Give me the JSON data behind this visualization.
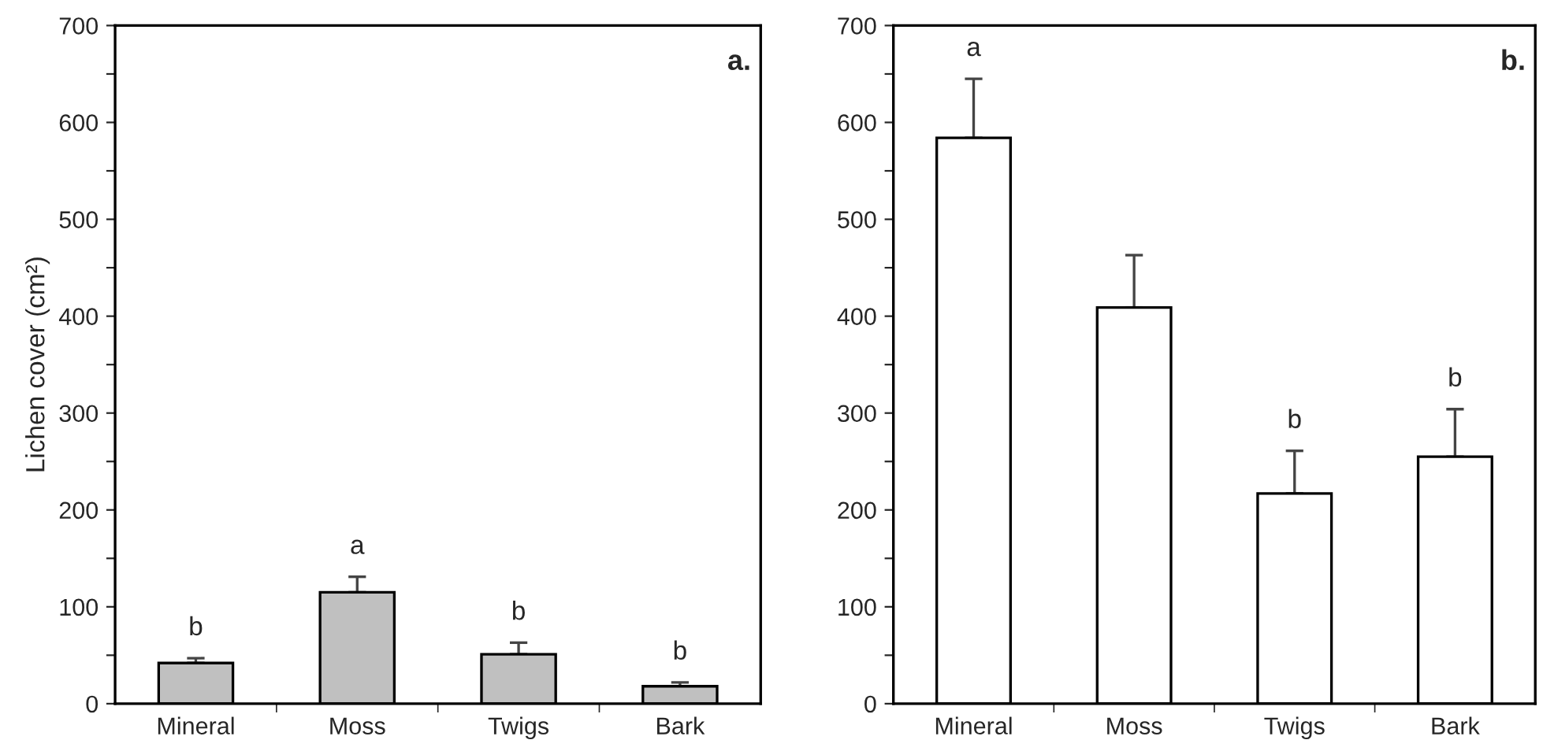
{
  "chart_data": [
    {
      "type": "bar",
      "ylabel": "Lichen cover (cm²)",
      "categories": [
        "Mineral",
        "Moss",
        "Twigs",
        "Bark"
      ],
      "series": [
        {
          "color": "#c0c0c0",
          "values": [
            42,
            115,
            51,
            18
          ],
          "errors": [
            [
              42,
              47
            ],
            [
              115,
              131
            ],
            [
              51,
              63
            ],
            [
              18,
              22
            ]
          ]
        }
      ],
      "ylim": [
        0,
        700
      ],
      "yticks": [
        0,
        {
          "value": 50,
          "label": null
        },
        100,
        {
          "value": 150,
          "label": null
        },
        200,
        {
          "value": 250,
          "label": null
        },
        300,
        {
          "value": 350,
          "label": null
        },
        400,
        {
          "value": 450,
          "label": null
        },
        500,
        {
          "value": 550,
          "label": null
        },
        600,
        {
          "value": 650,
          "label": null
        },
        700
      ],
      "annotations": [
        {
          "text": "b",
          "x": "Mineral",
          "y": 47
        },
        {
          "text": "a",
          "x": "Moss",
          "y": 131
        },
        {
          "text": "b",
          "x": "Twigs",
          "y": 63
        },
        {
          "text": "b",
          "x": "Bark",
          "y": 22
        },
        "a."
      ],
      "grid": false,
      "legend": false
    },
    {
      "type": "bar",
      "categories": [
        "Mineral",
        "Moss",
        "Twigs",
        "Bark"
      ],
      "series": [
        {
          "color": "#ffffff",
          "values": [
            584,
            409,
            217,
            255
          ],
          "errors": [
            [
              584,
              645
            ],
            [
              409,
              463
            ],
            [
              217,
              261
            ],
            [
              255,
              304
            ]
          ]
        }
      ],
      "ylim": [
        0,
        700
      ],
      "yticks": [
        0,
        {
          "value": 50,
          "label": null
        },
        100,
        {
          "value": 150,
          "label": null
        },
        200,
        {
          "value": 250,
          "label": null
        },
        300,
        {
          "value": 350,
          "label": null
        },
        400,
        {
          "value": 450,
          "label": null
        },
        500,
        {
          "value": 550,
          "label": null
        },
        600,
        {
          "value": 650,
          "label": null
        },
        700
      ],
      "annotations": [
        {
          "text": "a",
          "x": "Mineral",
          "y": 645
        },
        {
          "text": "b",
          "x": "Twigs",
          "y": 261
        },
        {
          "text": "b",
          "x": "Bark",
          "y": 304
        },
        "b."
      ],
      "grid": false,
      "legend": false
    }
  ]
}
